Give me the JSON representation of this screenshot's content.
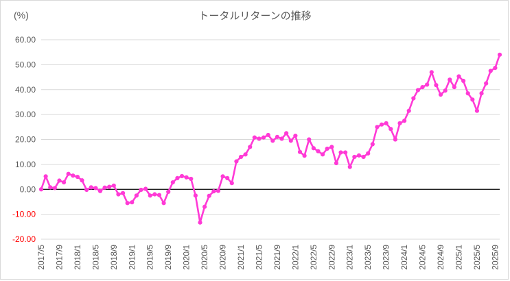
{
  "chart_data": {
    "type": "line",
    "title": "トータルリターンの推移",
    "unit_label": "(%)",
    "ylim": [
      -20,
      60
    ],
    "yticks": [
      "60.00",
      "50.00",
      "40.00",
      "30.00",
      "20.00",
      "10.00",
      "0.00",
      "-10.00",
      "-20.00"
    ],
    "xticks": [
      "2017/5",
      "2017/9",
      "2018/1",
      "2018/5",
      "2018/9",
      "2019/1",
      "2019/5",
      "2019/9",
      "2020/1",
      "2020/5",
      "2020/9",
      "2021/1",
      "2021/5",
      "2021/9",
      "2022/1",
      "2022/5",
      "2022/9",
      "2023/1",
      "2023/5",
      "2023/9",
      "2024/1",
      "2024/5",
      "2024/9",
      "2025/1",
      "2025/5",
      "2025/9"
    ],
    "x_start": "2017/5",
    "x_end": "2025/10",
    "grid": true,
    "series": [
      {
        "color": "#ff3ad6",
        "values": [
          0.0,
          5.2,
          0.8,
          0.5,
          3.5,
          2.8,
          6.2,
          5.5,
          5.0,
          3.6,
          -0.2,
          0.8,
          0.5,
          -0.7,
          0.7,
          1.0,
          1.5,
          -2.0,
          -1.5,
          -5.5,
          -5.2,
          -2.5,
          -0.2,
          0.2,
          -2.5,
          -2.0,
          -2.3,
          -5.5,
          -1.0,
          2.8,
          4.5,
          5.3,
          4.8,
          4.2,
          -2.5,
          -13.3,
          -7.0,
          -2.6,
          -0.8,
          -0.6,
          5.2,
          4.5,
          2.5,
          11.2,
          13.0,
          14.0,
          17.0,
          20.8,
          20.3,
          20.8,
          21.8,
          19.5,
          21.0,
          20.3,
          22.5,
          19.5,
          21.5,
          15.0,
          13.5,
          20.0,
          16.5,
          15.3,
          14.0,
          16.3,
          17.0,
          10.5,
          14.8,
          14.8,
          9.0,
          13.0,
          13.6,
          13.0,
          14.4,
          18.1,
          25.0,
          26.0,
          26.5,
          24.2,
          20.0,
          26.5,
          27.5,
          31.5,
          36.5,
          39.8,
          41.0,
          42.0,
          47.0,
          41.8,
          38.0,
          39.6,
          44.0,
          41.0,
          45.3,
          43.5,
          38.5,
          36.0,
          31.5,
          38.5,
          42.5,
          47.5,
          48.7,
          54.0
        ]
      }
    ]
  }
}
